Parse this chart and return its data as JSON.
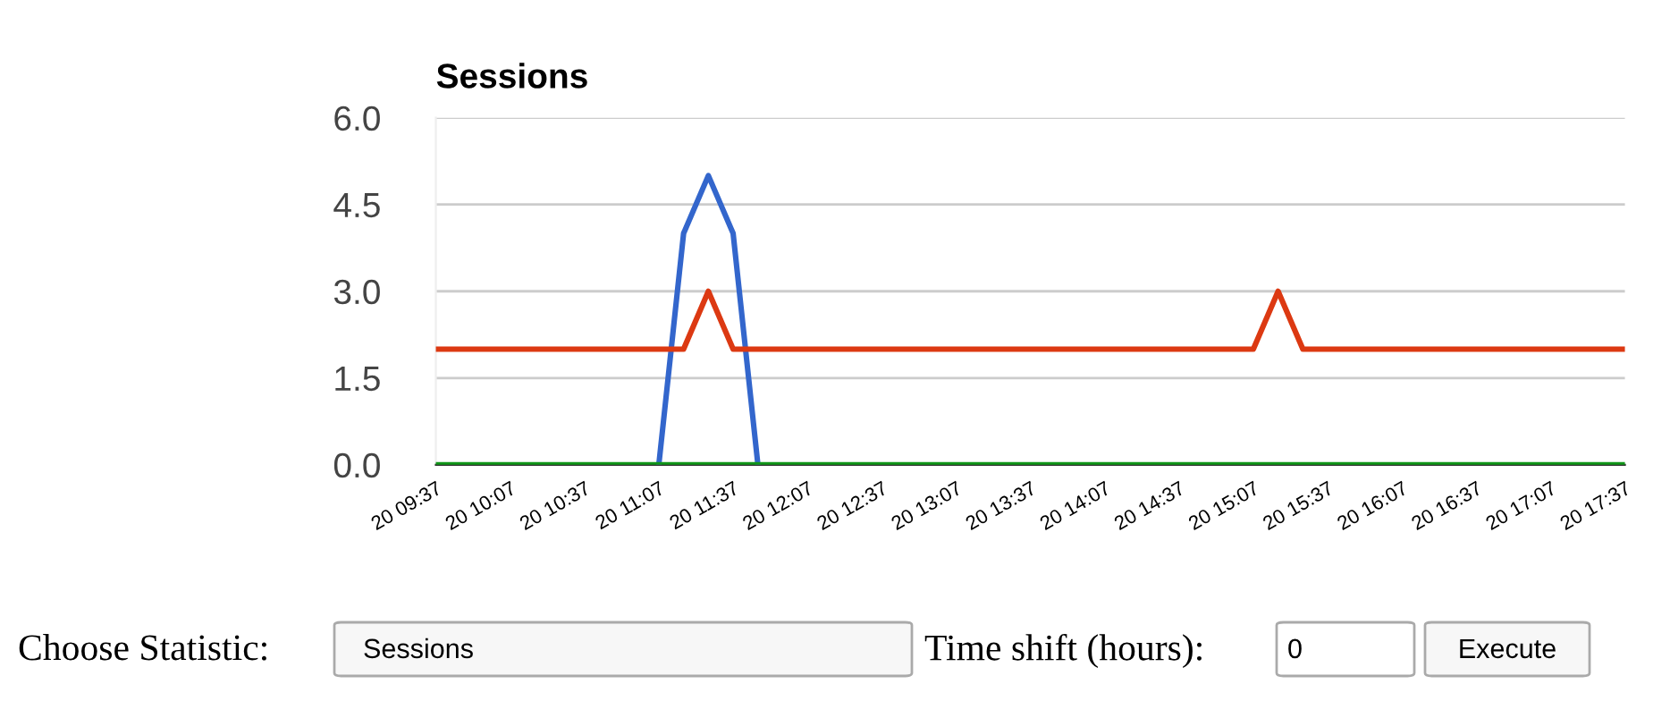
{
  "chart_data": {
    "type": "line",
    "title": "Sessions",
    "categories": [
      "20 09:37",
      null,
      null,
      "20 10:07",
      null,
      null,
      "20 10:37",
      null,
      null,
      "20 11:07",
      null,
      null,
      "20 11:37",
      null,
      null,
      "20 12:07",
      null,
      null,
      "20 12:37",
      null,
      null,
      "20 13:07",
      null,
      null,
      "20 13:37",
      null,
      null,
      "20 14:07",
      null,
      null,
      "20 14:37",
      null,
      null,
      "20 15:07",
      null,
      null,
      "20 15:37",
      null,
      null,
      "20 16:07",
      null,
      null,
      "20 16:37",
      null,
      null,
      "20 17:07",
      null,
      null,
      "20 17:37"
    ],
    "ylim": [
      0,
      6
    ],
    "yticks": [
      {
        "value": 0,
        "label": "0.0"
      },
      {
        "value": 1.5,
        "label": "1.5"
      },
      {
        "value": 3,
        "label": "3.0"
      },
      {
        "value": 4.5,
        "label": "4.5"
      },
      {
        "value": 6,
        "label": "6.0"
      }
    ],
    "grid": "y",
    "marker": "none",
    "line_style": "solid",
    "series": [
      {
        "color": "#3366cc",
        "values": [
          null,
          null,
          null,
          null,
          null,
          null,
          null,
          null,
          null,
          0,
          4,
          5,
          4,
          0,
          null,
          null,
          null,
          null,
          null,
          null,
          null,
          null,
          null,
          null,
          null,
          null,
          null,
          null,
          null,
          null,
          null,
          null,
          null,
          null,
          null,
          null,
          null,
          null,
          null,
          null,
          null,
          null,
          null,
          null,
          null,
          null,
          null,
          null,
          null
        ]
      },
      {
        "color": "#dc3912",
        "values": [
          2,
          2,
          2,
          2,
          2,
          2,
          2,
          2,
          2,
          2,
          2,
          3,
          2,
          2,
          2,
          2,
          2,
          2,
          2,
          2,
          2,
          2,
          2,
          2,
          2,
          2,
          2,
          2,
          2,
          2,
          2,
          2,
          2,
          2,
          3,
          2,
          2,
          2,
          2,
          2,
          2,
          2,
          2,
          2,
          2,
          2,
          2,
          2,
          2
        ]
      },
      {
        "color": "#109618",
        "values": [
          0,
          0,
          0,
          0,
          0,
          0,
          0,
          0,
          0,
          0,
          0,
          0,
          0,
          0,
          0,
          0,
          0,
          0,
          0,
          0,
          0,
          0,
          0,
          0,
          0,
          0,
          0,
          0,
          0,
          0,
          0,
          0,
          0,
          0,
          0,
          0,
          0,
          0,
          0,
          0,
          0,
          0,
          0,
          0,
          0,
          0,
          0,
          0,
          0
        ]
      }
    ],
    "annotations": [
      "Choose Statistic:",
      "Sessions",
      "Time shift (hours):",
      "0",
      "Execute"
    ]
  }
}
